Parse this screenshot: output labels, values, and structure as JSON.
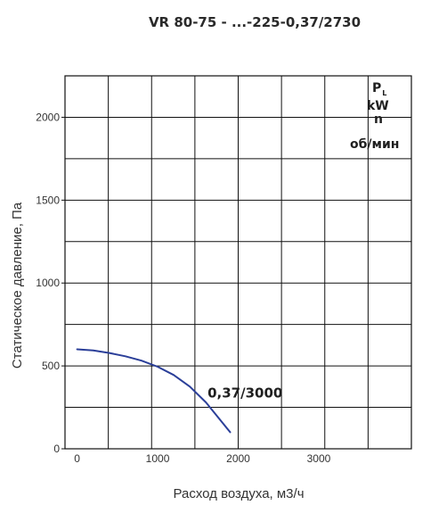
{
  "chart_data": {
    "type": "line",
    "title": "VR 80-75 - ...-225-0,37/2730",
    "xlabel": "Расход воздуха, м3/ч",
    "ylabel": "Статическое давление, Па",
    "xlim": [
      -150,
      4150
    ],
    "ylim": [
      0,
      2250
    ],
    "x_ticks": [
      0,
      1000,
      2000,
      3000
    ],
    "x_tick_labels": [
      "0",
      "1000",
      "2000",
      "3000"
    ],
    "y_ticks": [
      0,
      500,
      1000,
      1500,
      2000
    ],
    "y_tick_labels": [
      "0",
      "500",
      "1000",
      "1500",
      "2000"
    ],
    "grid": true,
    "legend": {
      "placement": "top-right",
      "pl_main": "P",
      "pl_sub": "L",
      "kw": "kW",
      "n": "n",
      "rpm": "об/мин"
    },
    "series": [
      {
        "label": "0,37/3000",
        "color": "#2b3f99",
        "x": [
          0,
          200,
          400,
          600,
          800,
          1000,
          1200,
          1400,
          1600,
          1800,
          1900
        ],
        "y": [
          600,
          593,
          578,
          558,
          532,
          495,
          445,
          375,
          280,
          160,
          100
        ]
      }
    ]
  }
}
